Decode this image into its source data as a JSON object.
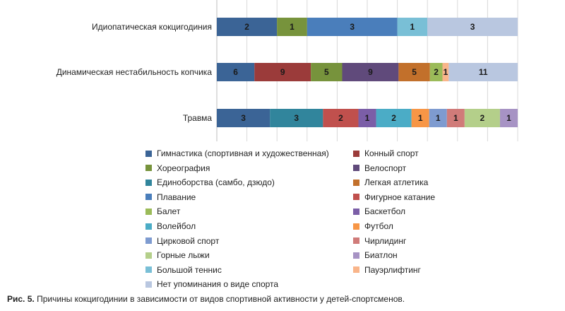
{
  "chart_data": {
    "type": "bar",
    "orientation": "horizontal",
    "stacked": "percent",
    "title": "",
    "xlabel": "",
    "ylabel": "",
    "xlim": [
      0,
      100
    ],
    "grid": true,
    "legend_placement": "bottom",
    "categories": [
      "Идиопатическая кокцигодиния",
      "Динамическая нестабильность копчика",
      "Травма"
    ],
    "series": [
      {
        "name": "Гимнастика (спортивная и художественная)",
        "color": "#3b6496",
        "values": [
          2,
          6,
          3
        ]
      },
      {
        "name": "Конный спорт",
        "color": "#9b3b3a",
        "values": [
          0,
          9,
          0
        ]
      },
      {
        "name": "Хореография",
        "color": "#77933c",
        "values": [
          1,
          5,
          0
        ]
      },
      {
        "name": "Велоспорт",
        "color": "#604a7b",
        "values": [
          0,
          9,
          0
        ]
      },
      {
        "name": "Единоборства (самбо, дзюдо)",
        "color": "#31859c",
        "values": [
          0,
          0,
          3
        ]
      },
      {
        "name": "Легкая атлетика",
        "color": "#c2702b",
        "values": [
          0,
          5,
          0
        ]
      },
      {
        "name": "Плавание",
        "color": "#4a7ebb",
        "values": [
          3,
          0,
          0
        ]
      },
      {
        "name": "Фигурное катание",
        "color": "#c0504d",
        "values": [
          0,
          0,
          2
        ]
      },
      {
        "name": "Балет",
        "color": "#9bbb59",
        "values": [
          0,
          2,
          0
        ]
      },
      {
        "name": "Баскетбол",
        "color": "#7b5ea7",
        "values": [
          0,
          0,
          1
        ]
      },
      {
        "name": "Волейбол",
        "color": "#4bacc6",
        "values": [
          0,
          0,
          2
        ]
      },
      {
        "name": "Футбол",
        "color": "#f79646",
        "values": [
          0,
          0,
          1
        ]
      },
      {
        "name": "Цирковой спорт",
        "color": "#7e9bd0",
        "values": [
          0,
          0,
          1
        ]
      },
      {
        "name": "Чирлидинг",
        "color": "#d07b79",
        "values": [
          0,
          0,
          1
        ]
      },
      {
        "name": "Горные лыжи",
        "color": "#b4cf8a",
        "values": [
          0,
          0,
          2
        ]
      },
      {
        "name": "Биатлон",
        "color": "#a793c4",
        "values": [
          0,
          0,
          1
        ]
      },
      {
        "name": "Большой теннис",
        "color": "#79bfd6",
        "values": [
          1,
          0,
          0
        ]
      },
      {
        "name": "Пауэрлифтинг",
        "color": "#f9b58a",
        "values": [
          0,
          1,
          0
        ]
      },
      {
        "name": "Нет упоминания о виде спорта",
        "color": "#b9c7e0",
        "values": [
          3,
          11,
          0
        ]
      }
    ]
  },
  "caption": {
    "label": "Рис. 5.",
    "text": " Причины кокцигодинии в зависимости от видов спортивной активности у детей-спортсменов."
  }
}
